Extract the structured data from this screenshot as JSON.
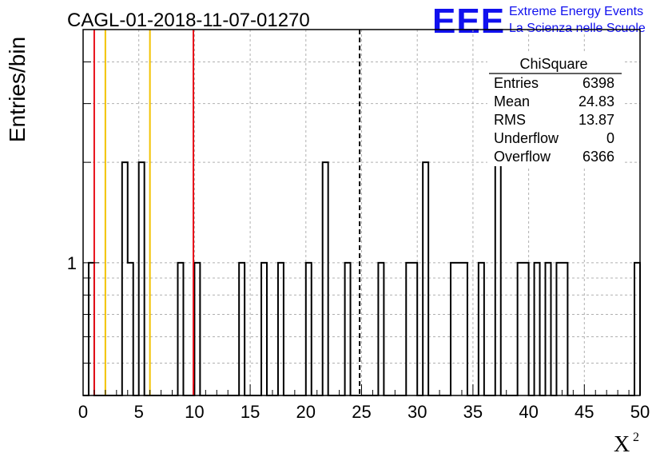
{
  "chart_data": {
    "type": "histogram",
    "title": "CAGL-01-2018-11-07-01270",
    "xlabel": "X",
    "xlabel_superscript": "2",
    "ylabel": "Entries/bin",
    "xlim": [
      0,
      50
    ],
    "ylog": true,
    "ylim": [
      0.4,
      5
    ],
    "grid": true,
    "x_ticks": [
      0,
      5,
      10,
      15,
      20,
      25,
      30,
      35,
      40,
      45,
      50
    ],
    "y_tick_labels": [
      "1"
    ],
    "bin_width": 0.5,
    "bins": [
      [
        0.5,
        1
      ],
      [
        3.5,
        2
      ],
      [
        4.0,
        1
      ],
      [
        5.0,
        2
      ],
      [
        8.5,
        1
      ],
      [
        10.0,
        1
      ],
      [
        14.0,
        1
      ],
      [
        16.0,
        1
      ],
      [
        17.5,
        1
      ],
      [
        20.0,
        1
      ],
      [
        21.5,
        2
      ],
      [
        23.5,
        1
      ],
      [
        26.5,
        1
      ],
      [
        29.0,
        1
      ],
      [
        29.5,
        1
      ],
      [
        30.5,
        2
      ],
      [
        33.0,
        1
      ],
      [
        33.5,
        1
      ],
      [
        34.0,
        1
      ],
      [
        35.5,
        1
      ],
      [
        37.0,
        2
      ],
      [
        39.0,
        1
      ],
      [
        39.5,
        1
      ],
      [
        40.5,
        1
      ],
      [
        41.5,
        1
      ],
      [
        42.5,
        1
      ],
      [
        43.0,
        1
      ],
      [
        49.5,
        1
      ]
    ],
    "vertical_lines": [
      {
        "x": 1.0,
        "color": "#e8101a",
        "style": "solid"
      },
      {
        "x": 2.0,
        "color": "#f2c200",
        "style": "solid"
      },
      {
        "x": 6.0,
        "color": "#f2c200",
        "style": "solid"
      },
      {
        "x": 9.9,
        "color": "#e8101a",
        "style": "solid"
      },
      {
        "x": 24.83,
        "color": "#000000",
        "style": "dashed"
      }
    ],
    "stats_box": {
      "title": "ChiSquare",
      "rows": [
        {
          "label": "Entries",
          "value": "6398"
        },
        {
          "label": "Mean",
          "value": "24.83"
        },
        {
          "label": "RMS",
          "value": "13.87"
        },
        {
          "label": "Underflow",
          "value": "0"
        },
        {
          "label": "Overflow",
          "value": "6366"
        }
      ]
    }
  },
  "logo": {
    "text": "EEE",
    "line1": "Extreme Energy Events",
    "line2": "La Scienza nelle Scuole",
    "color": "#1010ee"
  }
}
